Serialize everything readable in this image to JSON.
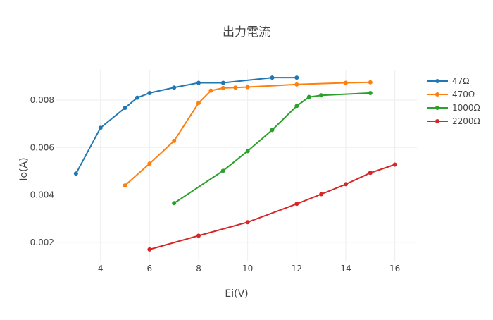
{
  "chart_data": {
    "type": "line",
    "title": "出力電流",
    "xlabel": "Ei(V)",
    "ylabel": "Io(A)",
    "xlim": [
      2.2,
      16.9
    ],
    "ylim": [
      0.00122,
      0.00925
    ],
    "x_ticks": [
      4,
      6,
      8,
      10,
      12,
      14,
      16
    ],
    "y_ticks": [
      0.002,
      0.004,
      0.006,
      0.008
    ],
    "x_tick_labels": [
      "4",
      "6",
      "8",
      "10",
      "12",
      "14",
      "16"
    ],
    "y_tick_labels": [
      "0.002",
      "0.004",
      "0.006",
      "0.008"
    ],
    "grid": true,
    "legend_position": "top-right",
    "series": [
      {
        "name": "47Ω",
        "color": "#1f77b4",
        "x": [
          3,
          4,
          5,
          5.5,
          6,
          7,
          8,
          9,
          11,
          12
        ],
        "y": [
          0.0049,
          0.00683,
          0.00767,
          0.0081,
          0.0083,
          0.00853,
          0.00873,
          0.00873,
          0.00895,
          0.00895
        ]
      },
      {
        "name": "470Ω",
        "color": "#ff7f0e",
        "x": [
          5,
          6,
          7,
          8,
          8.5,
          9,
          9.5,
          10,
          12,
          14,
          15
        ],
        "y": [
          0.0044,
          0.00532,
          0.00628,
          0.00788,
          0.0084,
          0.00851,
          0.00853,
          0.00855,
          0.00866,
          0.00873,
          0.00875
        ]
      },
      {
        "name": "1000Ω",
        "color": "#2ca02c",
        "x": [
          7,
          9,
          10,
          11,
          12,
          12.5,
          13,
          15
        ],
        "y": [
          0.00365,
          0.00502,
          0.00585,
          0.00674,
          0.00775,
          0.00813,
          0.0082,
          0.0083
        ]
      },
      {
        "name": "2200Ω",
        "color": "#d62728",
        "x": [
          6,
          8,
          10,
          12,
          13,
          14,
          15,
          16
        ],
        "y": [
          0.0017,
          0.00228,
          0.00285,
          0.00362,
          0.00403,
          0.00445,
          0.00493,
          0.00528
        ]
      }
    ]
  },
  "colors": {
    "grid": "#eeeeee",
    "text": "#444444"
  }
}
